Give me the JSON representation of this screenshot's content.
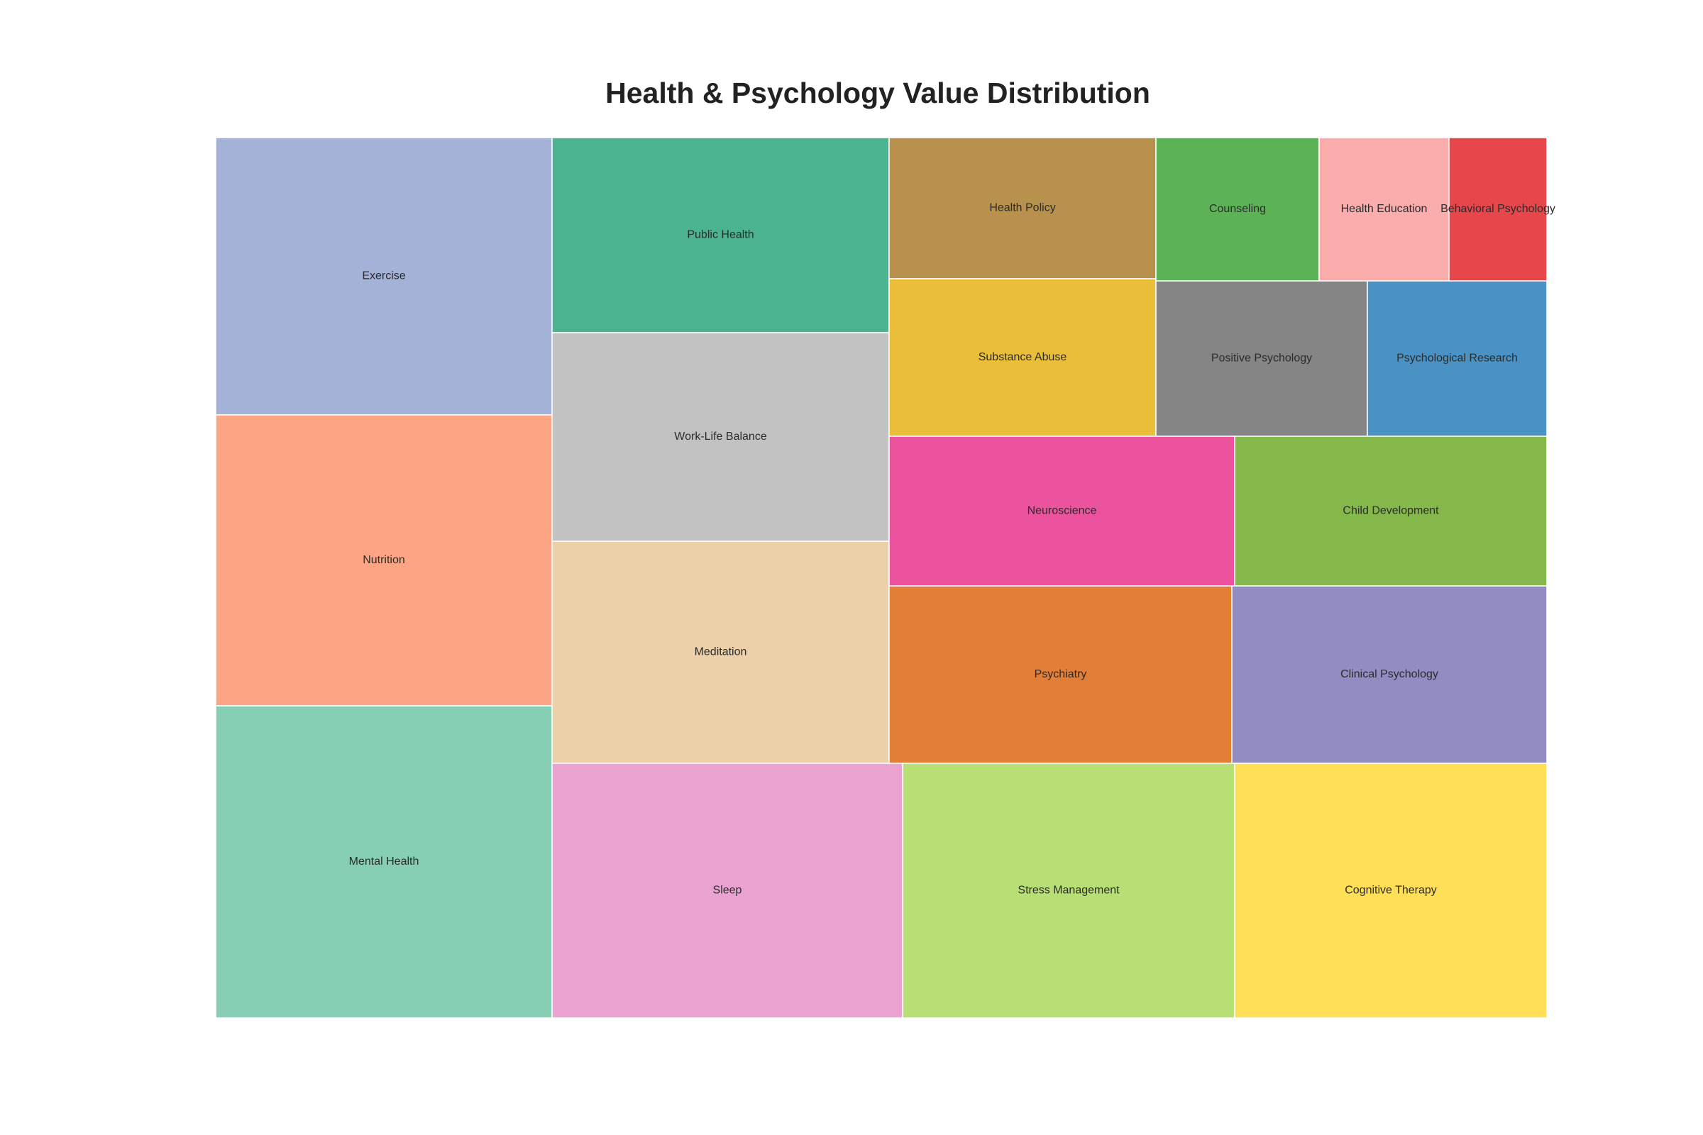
{
  "chart_data": {
    "type": "treemap",
    "title": "Health & Psychology Value Distribution",
    "items": [
      {
        "name": "Exercise",
        "color": "#a3b2d6"
      },
      {
        "name": "Nutrition",
        "color": "#fba585"
      },
      {
        "name": "Mental Health",
        "color": "#86cfb5"
      },
      {
        "name": "Public Health",
        "color": "#4cb390"
      },
      {
        "name": "Work-Life Balance",
        "color": "#c2c2c2"
      },
      {
        "name": "Meditation",
        "color": "#ebd0a9"
      },
      {
        "name": "Health Policy",
        "color": "#b8924c"
      },
      {
        "name": "Substance Abuse",
        "color": "#eabe38"
      },
      {
        "name": "Counseling",
        "color": "#5cb356"
      },
      {
        "name": "Health Education",
        "color": "#fbadad"
      },
      {
        "name": "Behavioral Psychology",
        "color": "#e7474a"
      },
      {
        "name": "Positive Psychology",
        "color": "#858585"
      },
      {
        "name": "Psychological Research",
        "color": "#4a92c4"
      },
      {
        "name": "Neuroscience",
        "color": "#eb539f"
      },
      {
        "name": "Child Development",
        "color": "#85b84a"
      },
      {
        "name": "Psychiatry",
        "color": "#e27e36"
      },
      {
        "name": "Clinical Psychology",
        "color": "#918cc1"
      },
      {
        "name": "Sleep",
        "color": "#eaa2d0"
      },
      {
        "name": "Stress Management",
        "color": "#b8df75"
      },
      {
        "name": "Cognitive Therapy",
        "color": "#ffdf58"
      }
    ]
  }
}
